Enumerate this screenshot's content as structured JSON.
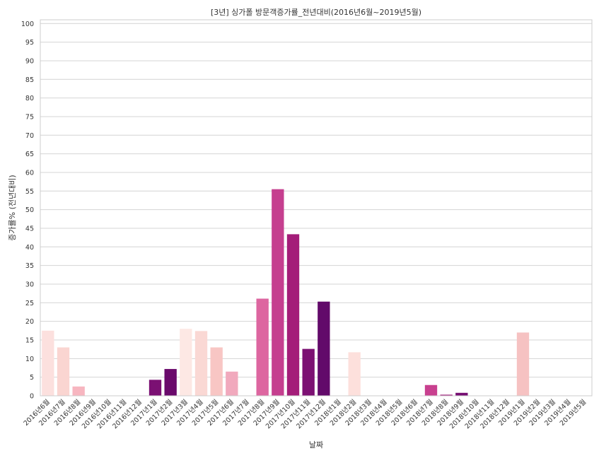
{
  "chart_data": {
    "type": "bar",
    "title": "[3년] 싱가폴 방문객증가률_전년대비(2016년6월~2019년5월)",
    "xlabel": "날짜",
    "ylabel": "증가률% (전년대비)",
    "ylim": [
      0,
      101
    ],
    "yticks": [
      0,
      5,
      10,
      15,
      20,
      25,
      30,
      35,
      40,
      45,
      50,
      55,
      60,
      65,
      70,
      75,
      80,
      85,
      90,
      95,
      100
    ],
    "grid": true,
    "categories": [
      "2016년6월",
      "2016년7월",
      "2016년8월",
      "2016년9월",
      "2016년10월",
      "2016년11월",
      "2016년12월",
      "2017년1월",
      "2017년2월",
      "2017년3월",
      "2017년4월",
      "2017년5월",
      "2017년6월",
      "2017년7월",
      "2017년8월",
      "2017년9월",
      "2017년10월",
      "2017년11월",
      "2017년12월",
      "2018년1월",
      "2018년2월",
      "2018년3월",
      "2018년4월",
      "2018년5월",
      "2018년6월",
      "2018년7월",
      "2018년8월",
      "2018년9월",
      "2018년10월",
      "2018년11월",
      "2018년12월",
      "2019년1월",
      "2019년2월",
      "2019년3월",
      "2019년4월",
      "2019년5월"
    ],
    "values": [
      17.5,
      13.0,
      2.5,
      0,
      0,
      0,
      0,
      4.3,
      7.2,
      18.0,
      17.4,
      13.0,
      6.5,
      0,
      26.1,
      55.5,
      43.4,
      12.6,
      25.3,
      0,
      11.7,
      0,
      0,
      0,
      0,
      2.9,
      0.3,
      0.8,
      0,
      0,
      0,
      17.0,
      0,
      0,
      0,
      0
    ],
    "colors": [
      "#fce0de",
      "#fad5d1",
      "#f7b6c0",
      "#fde4e0",
      "#fde4e0",
      "#fde4e0",
      "#fde4e0",
      "#7b1073",
      "#6a0a6c",
      "#fde8e4",
      "#fad8d4",
      "#f8c6c4",
      "#f1a9bd",
      "#fde4e0",
      "#dd66a0",
      "#c53f8f",
      "#a41d79",
      "#7c1173",
      "#620a6a",
      "#fde4e0",
      "#fde0dc",
      "#fde4e0",
      "#fde4e0",
      "#fde4e0",
      "#fde4e0",
      "#c8408f",
      "#9f1c7a",
      "#760e72",
      "#fde4e0",
      "#fde4e0",
      "#fde4e0",
      "#f6c2c2",
      "#fde4e0",
      "#fde4e0",
      "#fde4e0",
      "#fde4e0"
    ]
  }
}
